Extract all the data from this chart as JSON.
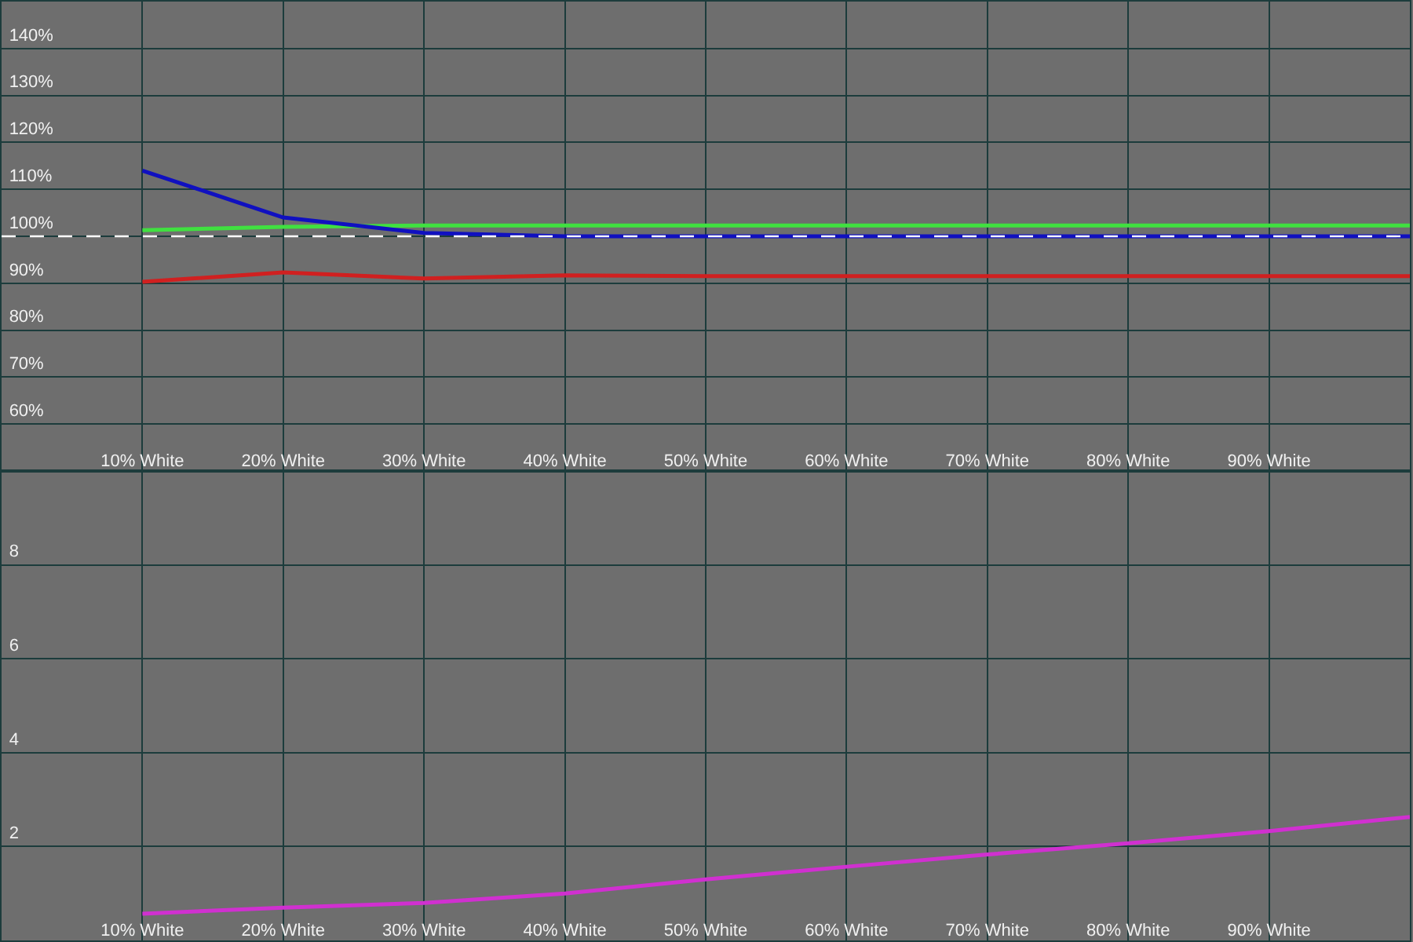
{
  "chart_data": [
    {
      "type": "line",
      "x": [
        10,
        20,
        30,
        40,
        50,
        60,
        70,
        80,
        90,
        100
      ],
      "xlim": [
        0,
        100
      ],
      "xticks": [
        {
          "value": 10,
          "label": "10% White"
        },
        {
          "value": 20,
          "label": "20% White"
        },
        {
          "value": 30,
          "label": "30% White"
        },
        {
          "value": 40,
          "label": "40% White"
        },
        {
          "value": 50,
          "label": "50% White"
        },
        {
          "value": 60,
          "label": "60% White"
        },
        {
          "value": 70,
          "label": "70% White"
        },
        {
          "value": 80,
          "label": "80% White"
        },
        {
          "value": 90,
          "label": "90% White"
        }
      ],
      "ylim": [
        50,
        150
      ],
      "yticks": [
        {
          "value": 60,
          "label": "60%"
        },
        {
          "value": 70,
          "label": "70%"
        },
        {
          "value": 80,
          "label": "80%"
        },
        {
          "value": 90,
          "label": "90%"
        },
        {
          "value": 100,
          "label": "100%"
        },
        {
          "value": 110,
          "label": "110%"
        },
        {
          "value": 120,
          "label": "120%"
        },
        {
          "value": 130,
          "label": "130%"
        },
        {
          "value": 140,
          "label": "140%"
        }
      ],
      "series": [
        {
          "color": "#d02020",
          "values": [
            90.3,
            92.3,
            91,
            91.7,
            91.5,
            91.5,
            91.5,
            91.5,
            91.5,
            91.5
          ]
        },
        {
          "color": "#40e040",
          "values": [
            101.3,
            102,
            102.3,
            102.3,
            102.3,
            102.3,
            102.3,
            102.3,
            102.3,
            102.3
          ]
        },
        {
          "color": "#1010c0",
          "values": [
            114,
            104,
            100.7,
            100,
            100,
            100,
            100,
            100,
            100,
            100
          ]
        }
      ],
      "ref_lines": [
        {
          "axis": "y",
          "value": 100,
          "color": "#ffffff",
          "line_style": "dashed"
        }
      ],
      "grid": true
    },
    {
      "type": "line",
      "x": [
        10,
        20,
        30,
        40,
        50,
        60,
        70,
        80,
        90,
        100
      ],
      "xlim": [
        0,
        100
      ],
      "xticks": [
        {
          "value": 10,
          "label": "10% White"
        },
        {
          "value": 20,
          "label": "20% White"
        },
        {
          "value": 30,
          "label": "30% White"
        },
        {
          "value": 40,
          "label": "40% White"
        },
        {
          "value": 50,
          "label": "50% White"
        },
        {
          "value": 60,
          "label": "60% White"
        },
        {
          "value": 70,
          "label": "70% White"
        },
        {
          "value": 80,
          "label": "80% White"
        },
        {
          "value": 90,
          "label": "90% White"
        }
      ],
      "ylim": [
        0,
        10
      ],
      "yticks": [
        2,
        4,
        6,
        8
      ],
      "series": [
        {
          "color": "#d030d0",
          "values": [
            0.57,
            0.7,
            0.8,
            1.0,
            1.3,
            1.57,
            1.83,
            2.07,
            2.33,
            2.63
          ]
        }
      ],
      "grid": true
    }
  ]
}
